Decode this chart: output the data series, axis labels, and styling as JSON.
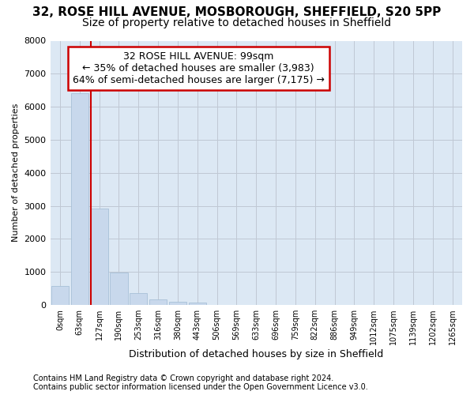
{
  "title1": "32, ROSE HILL AVENUE, MOSBOROUGH, SHEFFIELD, S20 5PP",
  "title2": "Size of property relative to detached houses in Sheffield",
  "xlabel": "Distribution of detached houses by size in Sheffield",
  "ylabel": "Number of detached properties",
  "footnote1": "Contains HM Land Registry data © Crown copyright and database right 2024.",
  "footnote2": "Contains public sector information licensed under the Open Government Licence v3.0.",
  "bar_labels": [
    "0sqm",
    "63sqm",
    "127sqm",
    "190sqm",
    "253sqm",
    "316sqm",
    "380sqm",
    "443sqm",
    "506sqm",
    "569sqm",
    "633sqm",
    "696sqm",
    "759sqm",
    "822sqm",
    "886sqm",
    "949sqm",
    "1012sqm",
    "1075sqm",
    "1139sqm",
    "1202sqm",
    "1265sqm"
  ],
  "bar_values": [
    570,
    6400,
    2920,
    980,
    360,
    170,
    100,
    80,
    0,
    0,
    0,
    0,
    0,
    0,
    0,
    0,
    0,
    0,
    0,
    0,
    0
  ],
  "bar_color": "#c8d8ec",
  "bar_edge_color": "#a8c0d8",
  "grid_color": "#c0c8d4",
  "plot_bg_color": "#dce8f4",
  "fig_bg_color": "#ffffff",
  "vline_x": 1.56,
  "vline_color": "#cc0000",
  "annotation_text": "32 ROSE HILL AVENUE: 99sqm\n← 35% of detached houses are smaller (3,983)\n64% of semi-detached houses are larger (7,175) →",
  "annotation_box_facecolor": "#ffffff",
  "annotation_box_edgecolor": "#cc0000",
  "ylim": [
    0,
    8000
  ],
  "yticks": [
    0,
    1000,
    2000,
    3000,
    4000,
    5000,
    6000,
    7000,
    8000
  ],
  "title1_fontsize": 11,
  "title2_fontsize": 10,
  "xlabel_fontsize": 9,
  "ylabel_fontsize": 8,
  "tick_fontsize": 8,
  "annot_fontsize": 9,
  "footnote_fontsize": 7
}
